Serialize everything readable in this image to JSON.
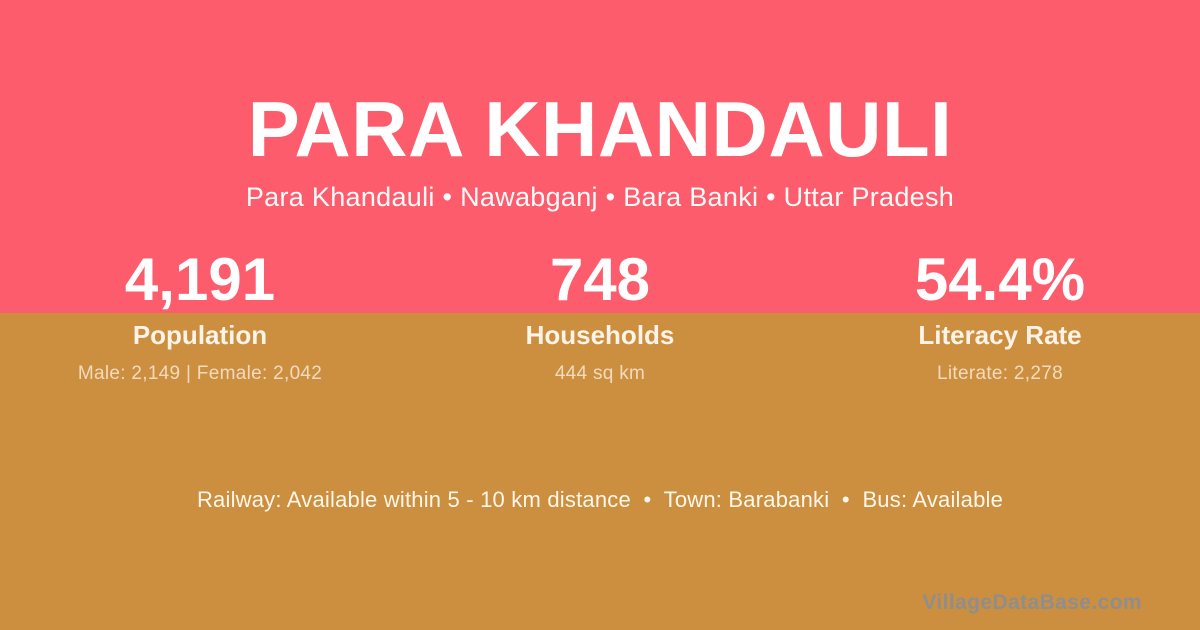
{
  "theme": {
    "top_band_color": "#fd5c6c",
    "bottom_band_color": "#cc8f40",
    "primary_text_color": "#ffffff",
    "watermark_color": "#8e8e8e"
  },
  "header": {
    "title": "PARA KHANDAULI",
    "subtitle": "Para Khandauli • Nawabganj • Bara Banki • Uttar Pradesh"
  },
  "stats": [
    {
      "value": "4,191",
      "label": "Population",
      "detail": "Male: 2,149 | Female: 2,042"
    },
    {
      "value": "748",
      "label": "Households",
      "detail": "444 sq km"
    },
    {
      "value": "54.4%",
      "label": "Literacy Rate",
      "detail": "Literate: 2,278"
    }
  ],
  "footer": {
    "amenities": "Railway: Available within 5 - 10 km distance  •  Town: Barabanki  •  Bus: Available",
    "watermark": "VillageDataBase.com"
  }
}
